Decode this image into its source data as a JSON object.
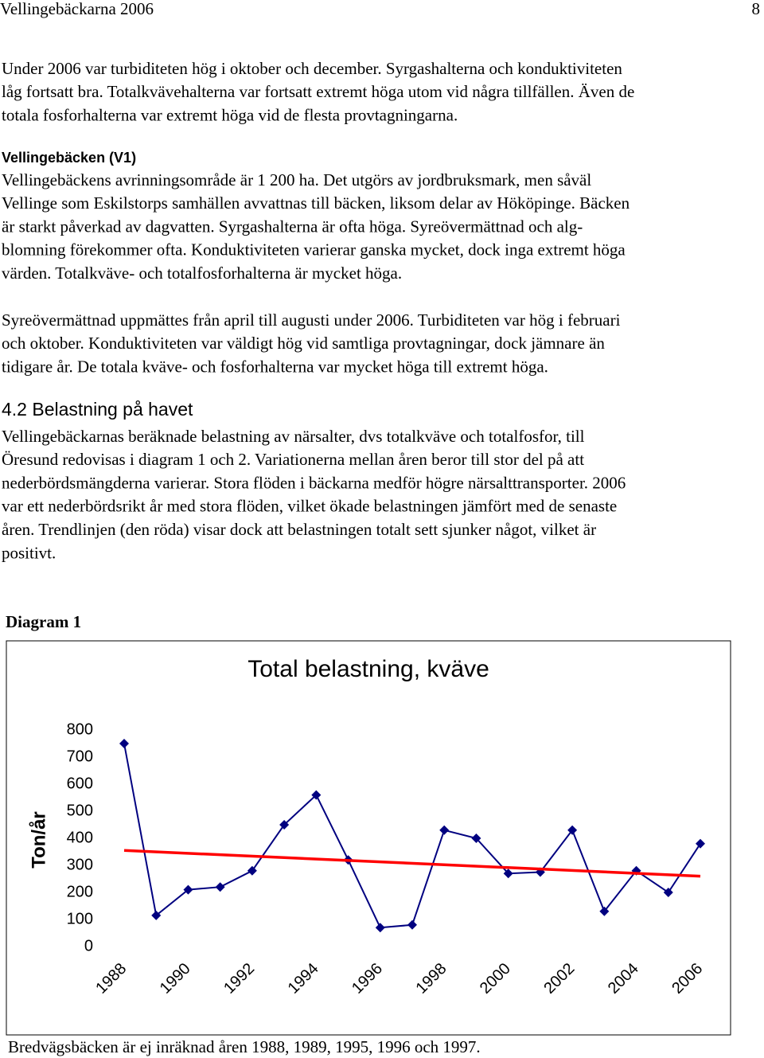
{
  "header": {
    "title": "Vellingebäckarna 2006",
    "page": "8"
  },
  "intro_lines": [
    "Under 2006 var turbiditeten hög i oktober och december. Syrgashalterna och konduktiviteten",
    "låg fortsatt bra. Totalkvävehalterna var fortsatt extremt höga utom vid några tillfällen. Även de",
    "totala fosforhalterna var extremt höga vid de flesta provtagningarna."
  ],
  "v1_heading": "Vellingebäcken (V1)",
  "v1_lines": [
    "Vellingebäckens avrinningsområde är 1 200 ha. Det utgörs av jordbruksmark, men såväl",
    "Vellinge som Eskilstorps samhällen avvattnas till bäcken, liksom delar av Hököpinge. Bäcken",
    "är starkt påverkad av dagvatten. Syrgashalterna är ofta höga. Syreövermättnad och alg-",
    "blomning förekommer ofta. Konduktiviteten varierar ganska mycket, dock inga extremt höga",
    "värden. Totalkväve- och totalfosforhalterna är mycket höga."
  ],
  "v1_lines_2": [
    "Syreövermättnad uppmättes från april till augusti under 2006. Turbiditeten var hög i februari",
    "och oktober. Konduktiviteten var väldigt hög vid samtliga provtagningar, dock jämnare än",
    "tidigare år. De totala kväve- och fosforhalterna var mycket höga till extremt höga."
  ],
  "section_heading": "4.2 Belastning på havet",
  "section_lines": [
    "Vellingebäckarnas beräknade belastning av närsalter, dvs totalkväve och totalfosfor, till",
    "Öresund redovisas i diagram 1 och 2. Variationerna mellan åren beror till stor del på att",
    "nederbördsmängderna varierar. Stora flöden i bäckarna medför högre närsalttransporter. 2006",
    "var ett nederbördsrikt år med stora flöden, vilket ökade belastningen jämfört med de senaste",
    "åren. Trendlinjen (den röda) visar dock att belastningen totalt sett sjunker något, vilket är",
    "positivt."
  ],
  "diagram_label": "Diagram 1",
  "chart_data": {
    "type": "line",
    "title": "Total belastning, kväve",
    "ylabel": "Ton/år",
    "x": [
      1988,
      1989,
      1990,
      1991,
      1992,
      1993,
      1994,
      1995,
      1996,
      1997,
      1998,
      1999,
      2000,
      2001,
      2002,
      2003,
      2004,
      2005,
      2006
    ],
    "series": [
      {
        "color": "#000080",
        "marker": "diamond",
        "values": [
          750,
          115,
          210,
          220,
          280,
          450,
          560,
          320,
          70,
          80,
          430,
          400,
          270,
          275,
          430,
          130,
          280,
          200,
          380
        ]
      }
    ],
    "trend": {
      "color": "#ff0000",
      "x": [
        1988,
        2006
      ],
      "values": [
        355,
        260
      ]
    },
    "xlim": [
      1988,
      2006
    ],
    "xticks": [
      1988,
      1990,
      1992,
      1994,
      1996,
      1998,
      2000,
      2002,
      2004,
      2006
    ],
    "ylim": [
      0,
      800
    ],
    "yticks": [
      0,
      100,
      200,
      300,
      400,
      500,
      600,
      700,
      800
    ],
    "grid": false
  },
  "footnote": "Bredvägsbäcken är ej inräknad åren 1988, 1989, 1995, 1996 och 1997."
}
